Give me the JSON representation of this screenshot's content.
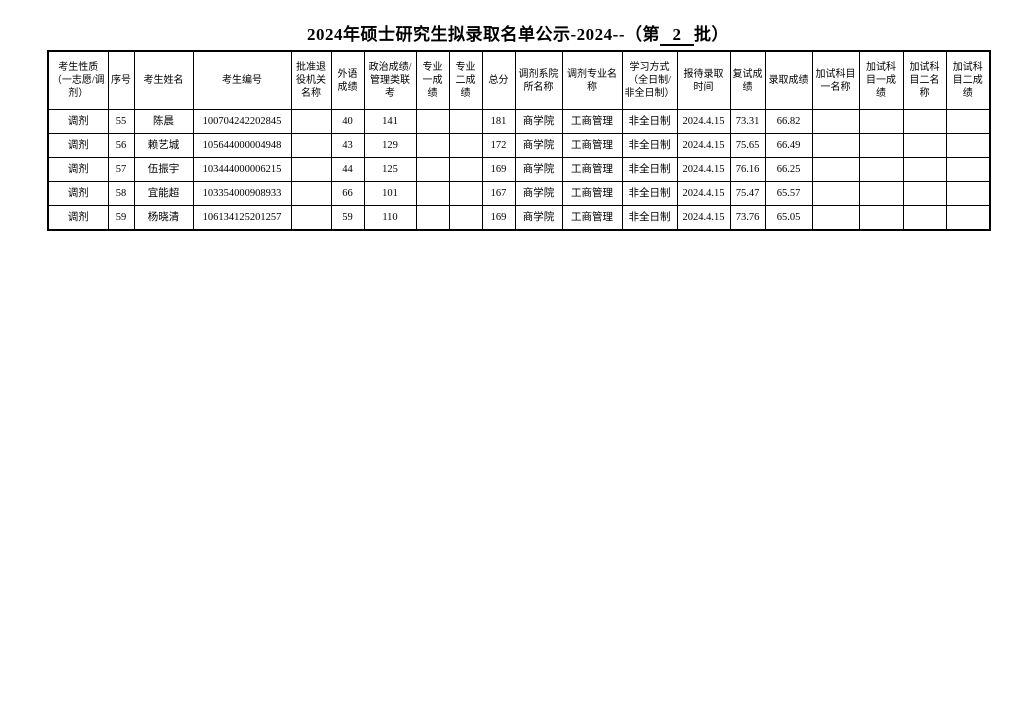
{
  "title": {
    "prefix": "2024年硕士研究生拟录取名单公示-2024--（第",
    "batch": "2",
    "suffix": "批）"
  },
  "table": {
    "headers": [
      "考生性质（一志愿/调剂）",
      "序号",
      "考生姓名",
      "考生编号",
      "批准退役机关名称",
      "外语成绩",
      "政治成绩/管理类联考",
      "专业一成绩",
      "专业二成绩",
      "总分",
      "调剂系院所名称",
      "调剂专业名称",
      "学习方式（全日制/非全日制）",
      "报待录取时间",
      "复试成绩",
      "录取成绩",
      "加试科目一名称",
      "加试科目一成绩",
      "加试科目二名称",
      "加试科目二成绩"
    ],
    "rows": [
      [
        "调剂",
        "55",
        "陈晨",
        "100704242202845",
        "",
        "40",
        "141",
        "",
        "",
        "181",
        "商学院",
        "工商管理",
        "非全日制",
        "2024.4.15",
        "73.31",
        "66.82",
        "",
        "",
        "",
        ""
      ],
      [
        "调剂",
        "56",
        "赖艺城",
        "105644000004948",
        "",
        "43",
        "129",
        "",
        "",
        "172",
        "商学院",
        "工商管理",
        "非全日制",
        "2024.4.15",
        "75.65",
        "66.49",
        "",
        "",
        "",
        ""
      ],
      [
        "调剂",
        "57",
        "伍振宇",
        "103444000006215",
        "",
        "44",
        "125",
        "",
        "",
        "169",
        "商学院",
        "工商管理",
        "非全日制",
        "2024.4.15",
        "76.16",
        "66.25",
        "",
        "",
        "",
        ""
      ],
      [
        "调剂",
        "58",
        "宜能超",
        "103354000908933",
        "",
        "66",
        "101",
        "",
        "",
        "167",
        "商学院",
        "工商管理",
        "非全日制",
        "2024.4.15",
        "75.47",
        "65.57",
        "",
        "",
        "",
        ""
      ],
      [
        "调剂",
        "59",
        "杨晓清",
        "106134125201257",
        "",
        "59",
        "110",
        "",
        "",
        "169",
        "商学院",
        "工商管理",
        "非全日制",
        "2024.4.15",
        "73.76",
        "65.05",
        "",
        "",
        "",
        ""
      ]
    ]
  }
}
